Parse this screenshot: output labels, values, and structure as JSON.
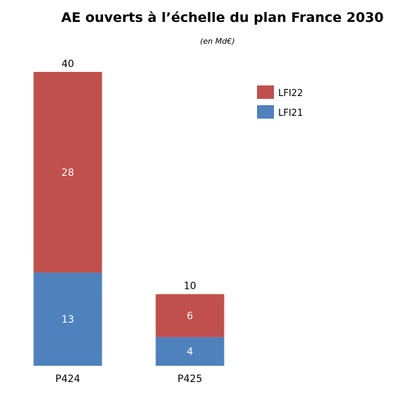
{
  "chart_data": {
    "type": "bar",
    "stacked": true,
    "title": "AE ouverts à l’échelle du plan France 2030",
    "subtitle": "(en Md€)",
    "categories": [
      "P424",
      "P425"
    ],
    "series": [
      {
        "name": "LFI21",
        "values": [
          13,
          4
        ],
        "color": "#4f81bd"
      },
      {
        "name": "LFI22",
        "values": [
          28,
          6
        ],
        "color": "#c0504d"
      }
    ],
    "totals": [
      40,
      10
    ],
    "ylim": [
      0,
      40
    ],
    "grid": false,
    "legend": "top-right"
  }
}
